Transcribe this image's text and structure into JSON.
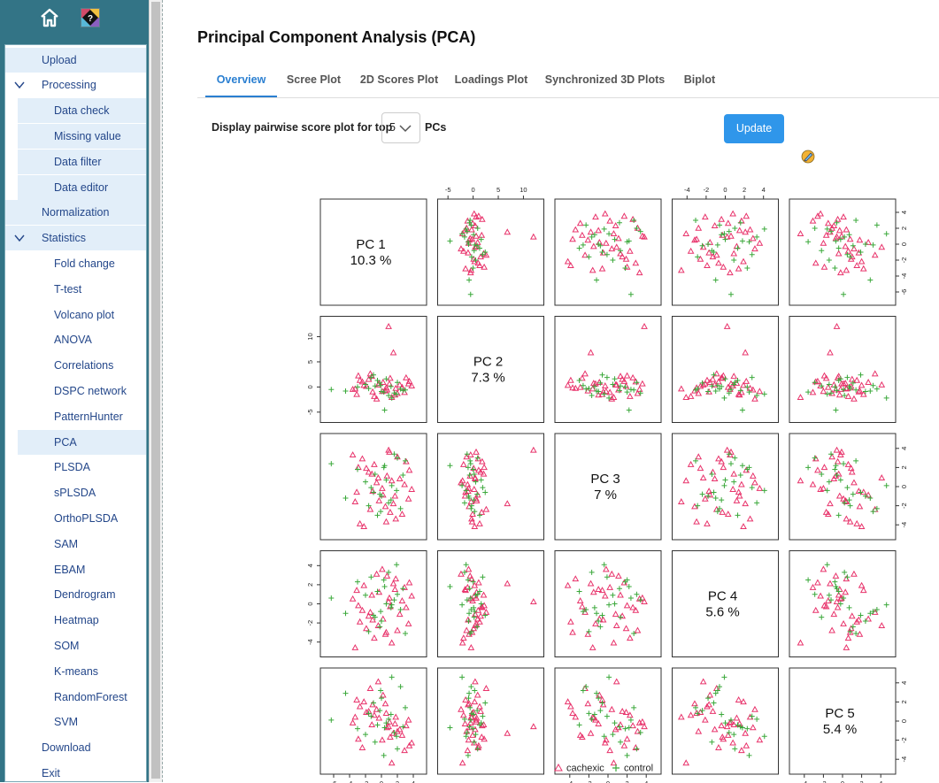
{
  "sidebar": {
    "items": [
      {
        "label": "Upload",
        "level": 1,
        "highlight": true,
        "chevron": false
      },
      {
        "label": "Processing",
        "level": 1,
        "highlight": false,
        "chevron": true
      },
      {
        "label": "Data check",
        "level": 2,
        "highlight": true,
        "chevron": false
      },
      {
        "label": "Missing value",
        "level": 2,
        "highlight": true,
        "chevron": false
      },
      {
        "label": "Data filter",
        "level": 2,
        "highlight": true,
        "chevron": false
      },
      {
        "label": "Data editor",
        "level": 2,
        "highlight": true,
        "chevron": false
      },
      {
        "label": "Normalization",
        "level": 1,
        "highlight": true,
        "chevron": false
      },
      {
        "label": "Statistics",
        "level": 1,
        "highlight": true,
        "chevron": true
      },
      {
        "label": "Fold change",
        "level": 2,
        "highlight": false,
        "chevron": false
      },
      {
        "label": "T-test",
        "level": 2,
        "highlight": false,
        "chevron": false
      },
      {
        "label": "Volcano plot",
        "level": 2,
        "highlight": false,
        "chevron": false
      },
      {
        "label": "ANOVA",
        "level": 2,
        "highlight": false,
        "chevron": false
      },
      {
        "label": "Correlations",
        "level": 2,
        "highlight": false,
        "chevron": false
      },
      {
        "label": "DSPC network",
        "level": 2,
        "highlight": false,
        "chevron": false
      },
      {
        "label": "PatternHunter",
        "level": 2,
        "highlight": false,
        "chevron": false
      },
      {
        "label": "PCA",
        "level": 2,
        "highlight": true,
        "chevron": false
      },
      {
        "label": "PLSDA",
        "level": 2,
        "highlight": false,
        "chevron": false
      },
      {
        "label": "sPLSDA",
        "level": 2,
        "highlight": false,
        "chevron": false
      },
      {
        "label": "OrthoPLSDA",
        "level": 2,
        "highlight": false,
        "chevron": false
      },
      {
        "label": "SAM",
        "level": 2,
        "highlight": false,
        "chevron": false
      },
      {
        "label": "EBAM",
        "level": 2,
        "highlight": false,
        "chevron": false
      },
      {
        "label": "Dendrogram",
        "level": 2,
        "highlight": false,
        "chevron": false
      },
      {
        "label": "Heatmap",
        "level": 2,
        "highlight": false,
        "chevron": false
      },
      {
        "label": "SOM",
        "level": 2,
        "highlight": false,
        "chevron": false
      },
      {
        "label": "K-means",
        "level": 2,
        "highlight": false,
        "chevron": false
      },
      {
        "label": "RandomForest",
        "level": 2,
        "highlight": false,
        "chevron": false
      },
      {
        "label": "SVM",
        "level": 2,
        "highlight": false,
        "chevron": false
      },
      {
        "label": "Download",
        "level": 1,
        "highlight": false,
        "chevron": false
      },
      {
        "label": "Exit",
        "level": 1,
        "highlight": false,
        "chevron": false
      }
    ]
  },
  "header": {
    "title": "Principal Component Analysis (PCA)"
  },
  "tabs": [
    "Overview",
    "Scree Plot",
    "2D Scores Plot",
    "Loadings Plot",
    "Synchronized 3D Plots",
    "Biplot"
  ],
  "active_tab": "Overview",
  "controls": {
    "label": "Display pairwise score plot for top",
    "select_value": "5",
    "suffix": "PCs",
    "update_label": "Update"
  },
  "colors": {
    "cachexic": "#e8336b",
    "control": "#3aa83a",
    "accent": "#2f96ea"
  },
  "icons": {
    "home": "home-icon",
    "help": "help-icon",
    "edit": "edit-icon"
  },
  "chart_data": {
    "type": "scatter",
    "subtype": "pairwise-matrix",
    "title": "",
    "diagonal": [
      {
        "pc": "PC 1",
        "variance": "10.3 %"
      },
      {
        "pc": "PC 2",
        "variance": "7.3 %"
      },
      {
        "pc": "PC 3",
        "variance": "7 %"
      },
      {
        "pc": "PC 4",
        "variance": "5.6 %"
      },
      {
        "pc": "PC 5",
        "variance": "5.4 %"
      }
    ],
    "axis_ranges": [
      [
        -7,
        5
      ],
      [
        -6,
        13
      ],
      [
        -5,
        5
      ],
      [
        -5,
        5
      ],
      [
        -5,
        5
      ]
    ],
    "axis_ticks": [
      [
        -6,
        -4,
        -2,
        0,
        2,
        4
      ],
      [
        -5,
        0,
        5,
        10
      ],
      [
        -4,
        -2,
        0,
        2,
        4
      ],
      [
        -4,
        -2,
        0,
        2,
        4
      ],
      [
        -4,
        -2,
        0,
        2,
        4
      ]
    ],
    "legend": [
      {
        "name": "cachexic",
        "marker": "triangle"
      },
      {
        "name": "control",
        "marker": "plus"
      }
    ],
    "legend_position": "bottom",
    "series": [
      {
        "name": "cachexic",
        "points": [
          [
            -1.2,
            2.1,
            1.3,
            0.9,
            -0.4
          ],
          [
            0.5,
            -0.8,
            -2.1,
            -3.2,
            1.8
          ],
          [
            2.3,
            0.4,
            0.8,
            -1.1,
            -0.9
          ],
          [
            -3.1,
            -1.5,
            -0.6,
            1.4,
            2.2
          ],
          [
            0.9,
            12.0,
            3.8,
            0.2,
            -0.6
          ],
          [
            1.8,
            -0.3,
            -3.4,
            2.6,
            0.4
          ],
          [
            -2.4,
            1.0,
            2.9,
            -0.7,
            -2.8
          ],
          [
            3.4,
            0.6,
            -1.3,
            -2.1,
            0.1
          ],
          [
            -0.6,
            -2.4,
            0.4,
            3.1,
            1.2
          ],
          [
            1.1,
            1.7,
            -2.7,
            -0.3,
            -1.7
          ],
          [
            -1.9,
            0.1,
            1.9,
            -2.6,
            0.9
          ],
          [
            2.9,
            -1.1,
            0.2,
            1.7,
            -3.1
          ],
          [
            0.2,
            0.9,
            -0.9,
            -1.6,
            2.7
          ],
          [
            -3.6,
            -0.5,
            3.3,
            0.5,
            -0.2
          ],
          [
            1.5,
            6.8,
            -1.8,
            2.1,
            -1.3
          ],
          [
            -0.9,
            -1.9,
            2.3,
            -3.6,
            0.6
          ],
          [
            3.8,
            0.2,
            -0.3,
            0.8,
            -2.3
          ],
          [
            -2.7,
            1.3,
            -3.9,
            -1.9,
            1.5
          ],
          [
            0.7,
            -0.6,
            1.1,
            2.9,
            -0.7
          ],
          [
            -1.4,
            2.6,
            -2.4,
            -0.9,
            3.4
          ],
          [
            2.0,
            -1.3,
            3.1,
            -2.8,
            -1.1
          ],
          [
            -0.3,
            0.7,
            -1.5,
            1.2,
            0.3
          ],
          [
            1.3,
            -2.1,
            0.6,
            -4.1,
            -4.4
          ],
          [
            -2.2,
            0.3,
            -4.2,
            1.9,
            2.0
          ],
          [
            3.1,
            1.8,
            2.6,
            -0.4,
            -0.5
          ],
          [
            0.1,
            -0.9,
            -0.2,
            3.6,
            -2.0
          ],
          [
            -1.6,
            1.5,
            1.5,
            -1.3,
            1.0
          ],
          [
            2.6,
            -0.1,
            -2.9,
            0.3,
            -1.5
          ],
          [
            -0.4,
            0.4,
            0.9,
            -2.3,
            4.1
          ],
          [
            1.7,
            -1.6,
            -1.0,
            1.5,
            -0.3
          ],
          [
            -2.9,
            2.2,
            2.0,
            -0.2,
            -1.9
          ],
          [
            0.6,
            -0.2,
            -3.7,
            -3.0,
            0.8
          ],
          [
            3.5,
            1.1,
            1.7,
            2.2,
            -2.6
          ],
          [
            -1.1,
            -1.0,
            -0.5,
            -1.7,
            1.7
          ],
          [
            1.0,
            0.6,
            3.6,
            0.6,
            -0.1
          ],
          [
            -3.3,
            -0.4,
            -1.6,
            -4.6,
            0.4
          ]
        ]
      },
      {
        "name": "control",
        "points": [
          [
            -4.5,
            -0.8,
            -1.2,
            -1.0,
            2.9
          ],
          [
            0.4,
            -4.6,
            2.2,
            1.8,
            -0.7
          ],
          [
            -0.2,
            0.8,
            -0.8,
            -2.4,
            1.1
          ],
          [
            1.6,
            -1.2,
            3.4,
            0.4,
            -1.2
          ],
          [
            -1.3,
            1.9,
            -0.1,
            2.8,
            0.5
          ],
          [
            2.4,
            -0.4,
            -2.3,
            -0.6,
            3.6
          ],
          [
            -0.8,
            0.2,
            1.3,
            -1.4,
            -2.2
          ],
          [
            0.9,
            -1.7,
            -1.7,
            3.3,
            0.2
          ],
          [
            -2.0,
            0.5,
            0.5,
            0.9,
            -1.4
          ],
          [
            3.0,
            -0.6,
            2.7,
            -3.1,
            1.4
          ],
          [
            -0.5,
            1.3,
            -3.0,
            1.3,
            -0.4
          ],
          [
            1.3,
            -2.2,
            0.1,
            -0.1,
            4.6
          ],
          [
            -3.0,
            0.0,
            1.8,
            2.3,
            -0.8
          ],
          [
            0.0,
            -0.9,
            -1.0,
            -1.8,
            2.4
          ],
          [
            2.0,
            0.9,
            3.0,
            1.0,
            -2.9
          ],
          [
            -1.6,
            -0.3,
            -2.0,
            -2.9,
            0.8
          ],
          [
            0.6,
            1.6,
            0.7,
            0.0,
            -0.2
          ],
          [
            -6.3,
            -0.5,
            2.4,
            0.6,
            0.1
          ],
          [
            1.9,
            -1.4,
            -0.4,
            4.1,
            -1.6
          ],
          [
            -0.1,
            0.3,
            -2.6,
            -0.8,
            3.2
          ],
          [
            2.7,
            -0.7,
            1.2,
            1.6,
            -0.6
          ],
          [
            -1.0,
            2.4,
            -0.6,
            -1.2,
            1.9
          ],
          [
            0.3,
            -1.0,
            2.0,
            2.5,
            -3.6
          ],
          [
            1.2,
            0.1,
            -1.4,
            -0.4,
            0.7
          ]
        ]
      }
    ]
  }
}
